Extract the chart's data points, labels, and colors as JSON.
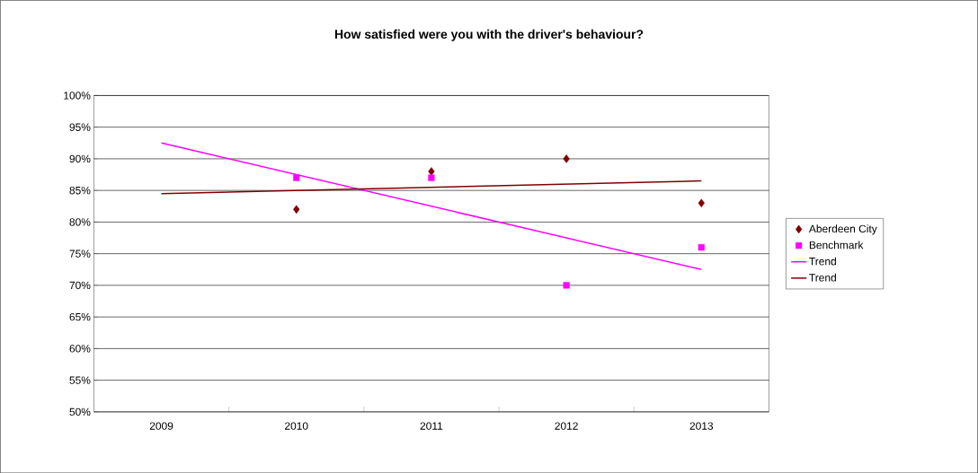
{
  "chart_data": {
    "type": "scatter",
    "title": "How satisfied were you with the driver's behaviour?",
    "xlim": [
      2008.5,
      2013.5
    ],
    "xticks": [
      2009,
      2010,
      2011,
      2012,
      2013
    ],
    "ylim": [
      50,
      100
    ],
    "yticks": [
      {
        "value": 50,
        "label": "50%"
      },
      {
        "value": 55,
        "label": "55%"
      },
      {
        "value": 60,
        "label": "60%"
      },
      {
        "value": 65,
        "label": "65%"
      },
      {
        "value": 70,
        "label": "70%"
      },
      {
        "value": 75,
        "label": "75%"
      },
      {
        "value": 80,
        "label": "80%"
      },
      {
        "value": 85,
        "label": "85%"
      },
      {
        "value": 90,
        "label": "90%"
      },
      {
        "value": 95,
        "label": "95%"
      },
      {
        "value": 100,
        "label": "100%"
      }
    ],
    "grid": "y",
    "legend": "right",
    "series": [
      {
        "name": "Aberdeen City",
        "marker": "diamond",
        "color": "#800000",
        "x": [
          2010,
          2011,
          2012,
          2013
        ],
        "values": [
          82,
          88,
          90,
          83
        ]
      },
      {
        "name": "Benchmark",
        "marker": "square",
        "color": "#ff00ff",
        "x": [
          2010,
          2011,
          2012,
          2013
        ],
        "values": [
          87,
          87,
          70,
          76
        ]
      },
      {
        "name": "Trend",
        "type": "line",
        "marker": "none",
        "color": "#ff00ff",
        "x": [
          2009,
          2013
        ],
        "values": [
          92.5,
          72.5
        ]
      },
      {
        "name": "Trend",
        "type": "line",
        "marker": "none",
        "color": "#800000",
        "x": [
          2009,
          2013
        ],
        "values": [
          84.5,
          86.5
        ]
      }
    ]
  }
}
